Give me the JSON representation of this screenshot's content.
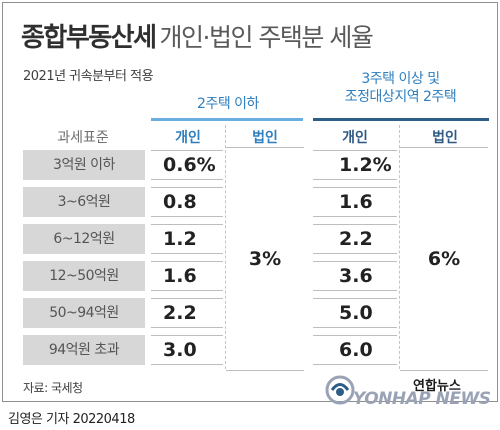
{
  "title": {
    "bold": "종합부동산세",
    "light": "개인·법인 주택분 세율"
  },
  "subtitle": "2021년 귀속분부터 적용",
  "groups": {
    "g1": "2주택 이하",
    "g2_line1": "3주택 이상 및",
    "g2_line2": "조정대상지역 2주택"
  },
  "headers": {
    "bracket": "과세표준",
    "personal_1": "개인",
    "corporate_1": "법인",
    "personal_2": "개인",
    "corporate_2": "법인"
  },
  "rows": [
    {
      "bracket": "3억원 이하",
      "g1_personal": "0.6%",
      "g2_personal": "1.2%"
    },
    {
      "bracket": "3~6억원",
      "g1_personal": "0.8",
      "g2_personal": "1.6"
    },
    {
      "bracket": "6~12억원",
      "g1_personal": "1.2",
      "g2_personal": "2.2"
    },
    {
      "bracket": "12~50억원",
      "g1_personal": "1.6",
      "g2_personal": "3.6"
    },
    {
      "bracket": "50~94억원",
      "g1_personal": "2.2",
      "g2_personal": "5.0"
    },
    {
      "bracket": "94억원 초과",
      "g1_personal": "3.0",
      "g2_personal": "6.0"
    }
  ],
  "merged": {
    "g1_corporate": "3%",
    "g2_corporate": "6%"
  },
  "source": "자료: 국세청",
  "logo": {
    "korean": "연합뉴스",
    "english": "YONHAP NEWS"
  },
  "credit": "김영은 기자  20220418",
  "colors": {
    "accent_light": "#6aaee0",
    "accent_dark": "#2e5e88",
    "label_bg": "#d7d7d7"
  }
}
